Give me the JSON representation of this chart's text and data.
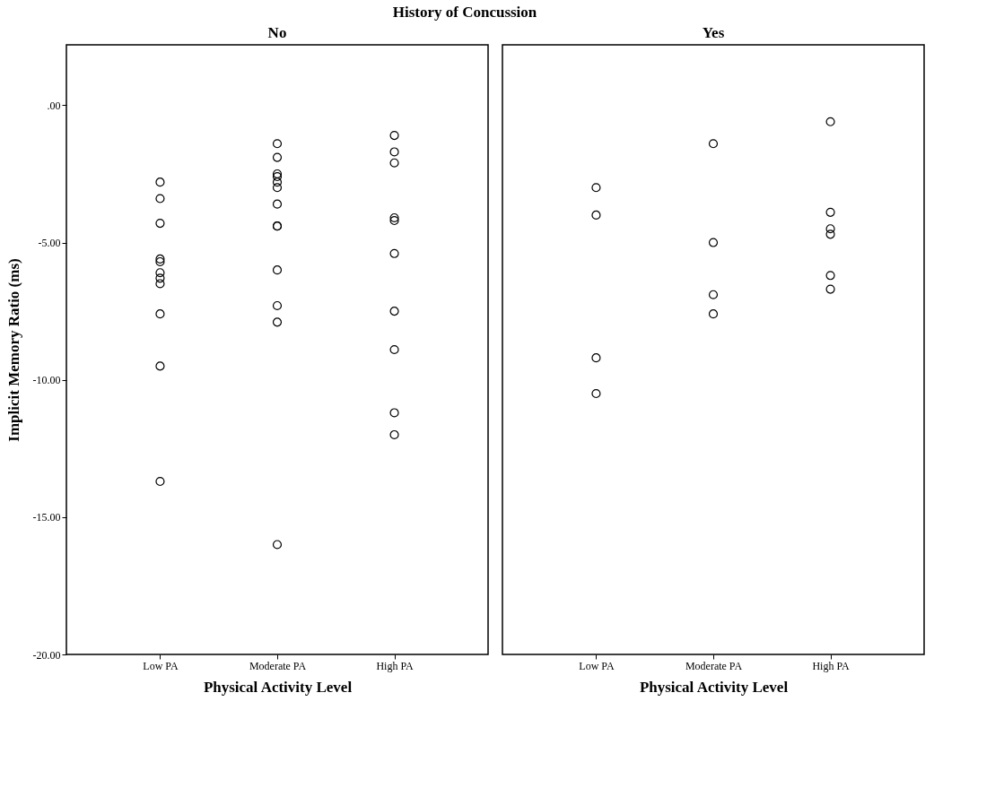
{
  "chart_data": [
    {
      "type": "scatter",
      "title": "No",
      "annotations": [
        "History of Concussion"
      ],
      "xlabel": "Physical Activity Level",
      "ylabel": "Implicit Memory Ratio (ms)",
      "categories": [
        "Low PA",
        "Moderate PA",
        "High PA"
      ],
      "ylim": [
        -20,
        2.2
      ],
      "yticks": [
        {
          "value": -20,
          "label": "-20.00"
        },
        {
          "value": -15,
          "label": "-15.00"
        },
        {
          "value": -10,
          "label": "-10.00"
        },
        {
          "value": -5,
          "label": "-5.00"
        },
        {
          "value": 0,
          "label": ".00"
        }
      ],
      "grid": false,
      "marker": "circle",
      "series": [
        {
          "color": "#000000",
          "x": [
            "Low PA",
            "Low PA",
            "Low PA",
            "Low PA",
            "Low PA",
            "Low PA",
            "Low PA",
            "Low PA",
            "Low PA",
            "Low PA",
            "Low PA",
            "Moderate PA",
            "Moderate PA",
            "Moderate PA",
            "Moderate PA",
            "Moderate PA",
            "Moderate PA",
            "Moderate PA",
            "Moderate PA",
            "Moderate PA",
            "Moderate PA",
            "Moderate PA",
            "Moderate PA",
            "Moderate PA",
            "High PA",
            "High PA",
            "High PA",
            "High PA",
            "High PA",
            "High PA",
            "High PA",
            "High PA",
            "High PA",
            "High PA"
          ],
          "values": [
            -2.8,
            -3.4,
            -4.3,
            -5.6,
            -5.7,
            -6.1,
            -6.3,
            -6.5,
            -7.6,
            -9.5,
            -13.7,
            -1.4,
            -1.9,
            -2.5,
            -2.6,
            -2.8,
            -3.0,
            -3.6,
            -4.4,
            -4.4,
            -6.0,
            -7.3,
            -7.9,
            -16.0,
            -1.1,
            -1.7,
            -2.1,
            -4.1,
            -4.2,
            -5.4,
            -7.5,
            -8.9,
            -11.2,
            -12.0
          ]
        }
      ]
    },
    {
      "type": "scatter",
      "title": "Yes",
      "xlabel": "Physical Activity Level",
      "categories": [
        "Low PA",
        "Moderate PA",
        "High PA"
      ],
      "ylim": [
        -20,
        2.2
      ],
      "tick_labels": "x",
      "grid": false,
      "marker": "circle",
      "series": [
        {
          "color": "#000000",
          "x": [
            "Low PA",
            "Low PA",
            "Low PA",
            "Low PA",
            "Moderate PA",
            "Moderate PA",
            "Moderate PA",
            "Moderate PA",
            "High PA",
            "High PA",
            "High PA",
            "High PA",
            "High PA",
            "High PA"
          ],
          "values": [
            -3.0,
            -4.0,
            -9.2,
            -10.5,
            -1.4,
            -5.0,
            -6.9,
            -7.6,
            -0.6,
            -3.9,
            -4.5,
            -4.7,
            -6.2,
            -6.7
          ]
        }
      ]
    }
  ]
}
